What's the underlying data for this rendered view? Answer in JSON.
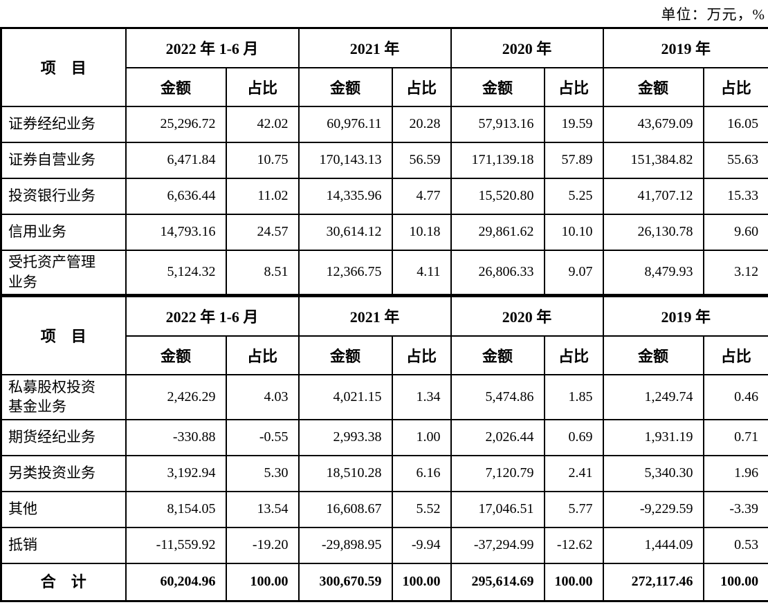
{
  "unit_label": "单位：万元，%",
  "colors": {
    "border": "#000000",
    "text": "#000000",
    "background": "#ffffff"
  },
  "tables": [
    {
      "item_header": "项　目",
      "periods": [
        {
          "label": "2022 年 1-6 月",
          "amount_label": "金额",
          "share_label": "占比"
        },
        {
          "label": "2021 年",
          "amount_label": "金额",
          "share_label": "占比"
        },
        {
          "label": "2020 年",
          "amount_label": "金额",
          "share_label": "占比"
        },
        {
          "label": "2019 年",
          "amount_label": "金额",
          "share_label": "占比"
        }
      ],
      "rows": [
        {
          "item": "证券经纪业务",
          "bold": false,
          "tall": false,
          "values": [
            "25,296.72",
            "42.02",
            "60,976.11",
            "20.28",
            "57,913.16",
            "19.59",
            "43,679.09",
            "16.05"
          ]
        },
        {
          "item": "证券自营业务",
          "bold": false,
          "tall": false,
          "values": [
            "6,471.84",
            "10.75",
            "170,143.13",
            "56.59",
            "171,139.18",
            "57.89",
            "151,384.82",
            "55.63"
          ]
        },
        {
          "item": "投资银行业务",
          "bold": false,
          "tall": false,
          "values": [
            "6,636.44",
            "11.02",
            "14,335.96",
            "4.77",
            "15,520.80",
            "5.25",
            "41,707.12",
            "15.33"
          ]
        },
        {
          "item": "信用业务",
          "bold": false,
          "tall": false,
          "values": [
            "14,793.16",
            "24.57",
            "30,614.12",
            "10.18",
            "29,861.62",
            "10.10",
            "26,130.78",
            "9.60"
          ]
        },
        {
          "item": "受托资产管理\n业务",
          "bold": false,
          "tall": true,
          "values": [
            "5,124.32",
            "8.51",
            "12,366.75",
            "4.11",
            "26,806.33",
            "9.07",
            "8,479.93",
            "3.12"
          ]
        }
      ]
    },
    {
      "item_header": "项　目",
      "periods": [
        {
          "label": "2022 年 1-6 月",
          "amount_label": "金额",
          "share_label": "占比"
        },
        {
          "label": "2021 年",
          "amount_label": "金额",
          "share_label": "占比"
        },
        {
          "label": "2020 年",
          "amount_label": "金额",
          "share_label": "占比"
        },
        {
          "label": "2019 年",
          "amount_label": "金额",
          "share_label": "占比"
        }
      ],
      "rows": [
        {
          "item": "私募股权投资\n基金业务",
          "bold": false,
          "tall": true,
          "values": [
            "2,426.29",
            "4.03",
            "4,021.15",
            "1.34",
            "5,474.86",
            "1.85",
            "1,249.74",
            "0.46"
          ]
        },
        {
          "item": "期货经纪业务",
          "bold": false,
          "tall": false,
          "values": [
            "-330.88",
            "-0.55",
            "2,993.38",
            "1.00",
            "2,026.44",
            "0.69",
            "1,931.19",
            "0.71"
          ]
        },
        {
          "item": "另类投资业务",
          "bold": false,
          "tall": false,
          "values": [
            "3,192.94",
            "5.30",
            "18,510.28",
            "6.16",
            "7,120.79",
            "2.41",
            "5,340.30",
            "1.96"
          ]
        },
        {
          "item": "其他",
          "bold": false,
          "tall": false,
          "values": [
            "8,154.05",
            "13.54",
            "16,608.67",
            "5.52",
            "17,046.51",
            "5.77",
            "-9,229.59",
            "-3.39"
          ]
        },
        {
          "item": "抵销",
          "bold": false,
          "tall": false,
          "values": [
            "-11,559.92",
            "-19.20",
            "-29,898.95",
            "-9.94",
            "-37,294.99",
            "-12.62",
            "1,444.09",
            "0.53"
          ]
        },
        {
          "item": "合　计",
          "bold": true,
          "tall": false,
          "values": [
            "60,204.96",
            "100.00",
            "300,670.59",
            "100.00",
            "295,614.69",
            "100.00",
            "272,117.46",
            "100.00"
          ]
        }
      ]
    }
  ]
}
